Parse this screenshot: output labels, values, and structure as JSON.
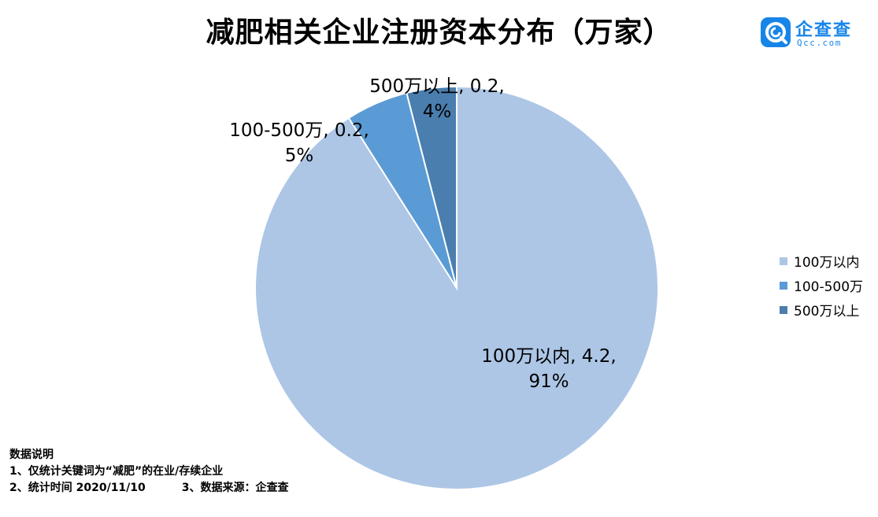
{
  "title": "减肥相关企业注册资本分布（万家）",
  "logo": {
    "name": "企查查",
    "domain": "Qcc.com",
    "color": "#1785e8"
  },
  "chart_data": {
    "type": "pie",
    "title": "减肥相关企业注册资本分布（万家）",
    "slices": [
      {
        "label": "100万以内",
        "value": 4.2,
        "percent": "91%",
        "color": "#adc6e6"
      },
      {
        "label": "100-500万",
        "value": 0.2,
        "percent": "5%",
        "color": "#5b9bd5"
      },
      {
        "label": "500万以上",
        "value": 0.2,
        "percent": "4%",
        "color": "#4a7eae"
      }
    ],
    "data_labels": [
      {
        "line1": "100万以内, 4.2,",
        "line2": "91%"
      },
      {
        "line1": "100-500万, 0.2,",
        "line2": "5%"
      },
      {
        "line1": "500万以上, 0.2,",
        "line2": "4%"
      }
    ],
    "legend_position": "right"
  },
  "notes": {
    "heading": "数据说明",
    "line1": "1、仅统计关键词为“减肥”的在业/存续企业",
    "line2a": "2、统计时间 2020/11/10",
    "line2b": "3、数据来源：企查查"
  }
}
